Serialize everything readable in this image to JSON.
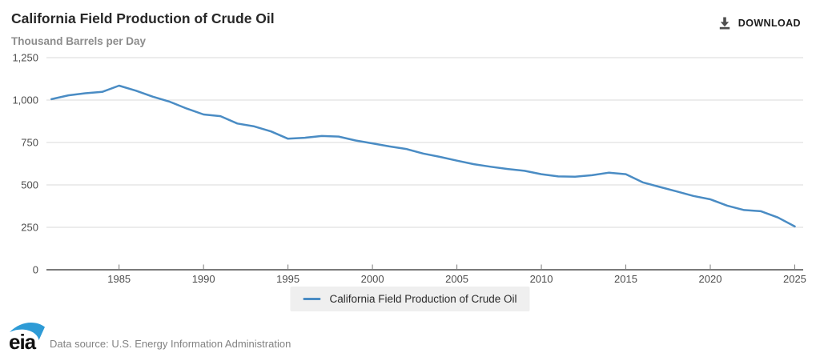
{
  "header": {
    "title": "California Field Production of Crude Oil",
    "subtitle": "Thousand Barrels per Day",
    "download_label": "DOWNLOAD"
  },
  "legend": {
    "items": [
      {
        "label": "California Field Production of Crude Oil",
        "color": "#4a8cc4"
      }
    ]
  },
  "footer": {
    "logo_text": "eia",
    "source_text": "Data source: U.S. Energy Information Administration"
  },
  "colors": {
    "line": "#4a8cc4",
    "grid": "#d9d9d9",
    "axis": "#7a7a7a",
    "tick_text": "#4d4d4d",
    "legend_bg": "#efefef",
    "logo_swoosh": "#2e9bd6",
    "download_icon": "#4d4d4d"
  },
  "chart_data": {
    "type": "line",
    "title": "California Field Production of Crude Oil",
    "ylabel": "Thousand Barrels per Day",
    "xlabel": "",
    "grid": "horizontal",
    "legend_position": "bottom-center",
    "xlim": [
      1980.7,
      2025.5
    ],
    "ylim": [
      0,
      1250
    ],
    "x_ticks": [
      1985,
      1990,
      1995,
      2000,
      2005,
      2010,
      2015,
      2020,
      2025
    ],
    "y_ticks": [
      0,
      250,
      500,
      750,
      1000,
      1250
    ],
    "y_tick_labels": [
      "0",
      "250",
      "500",
      "750",
      "1,000",
      "1,250"
    ],
    "series": [
      {
        "name": "California Field Production of Crude Oil",
        "color": "#4a8cc4",
        "x": [
          1981,
          1982,
          1983,
          1984,
          1985,
          1986,
          1987,
          1988,
          1989,
          1990,
          1991,
          1992,
          1993,
          1994,
          1995,
          1996,
          1997,
          1998,
          1999,
          2000,
          2001,
          2002,
          2003,
          2004,
          2005,
          2006,
          2007,
          2008,
          2009,
          2010,
          2011,
          2012,
          2013,
          2014,
          2015,
          2016,
          2017,
          2018,
          2019,
          2020,
          2021,
          2022,
          2023,
          2024,
          2025
        ],
        "values": [
          1005,
          1028,
          1040,
          1048,
          1085,
          1055,
          1020,
          990,
          950,
          915,
          905,
          862,
          845,
          815,
          772,
          778,
          788,
          785,
          762,
          745,
          727,
          712,
          685,
          665,
          643,
          622,
          607,
          594,
          583,
          563,
          550,
          548,
          557,
          572,
          563,
          515,
          488,
          462,
          435,
          415,
          378,
          352,
          345,
          308,
          255
        ]
      }
    ]
  }
}
